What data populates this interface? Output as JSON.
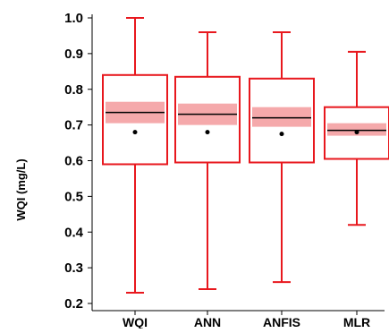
{
  "chart_data": {
    "type": "box",
    "ylabel": "WQI (mg/L)",
    "xlabel": "",
    "ylim": [
      0.2,
      1.0
    ],
    "yticks": [
      0.2,
      0.3,
      0.4,
      0.5,
      0.6,
      0.7,
      0.8,
      0.9,
      1.0
    ],
    "ytick_labels": [
      "0.2",
      "0.3",
      "0.4",
      "0.5",
      "0.6",
      "0.7",
      "0.8",
      "0.9",
      "1.0"
    ],
    "categories": [
      "WQI",
      "ANN",
      "ANFIS",
      "MLR"
    ],
    "boxes": [
      {
        "name": "WQI",
        "min": 0.23,
        "q1": 0.59,
        "median": 0.735,
        "q3": 0.84,
        "max": 1.0,
        "mean": 0.68,
        "ci_low": 0.705,
        "ci_high": 0.765
      },
      {
        "name": "ANN",
        "min": 0.24,
        "q1": 0.595,
        "median": 0.73,
        "q3": 0.835,
        "max": 0.96,
        "mean": 0.68,
        "ci_low": 0.7,
        "ci_high": 0.76
      },
      {
        "name": "ANFIS",
        "min": 0.26,
        "q1": 0.595,
        "median": 0.72,
        "q3": 0.83,
        "max": 0.96,
        "mean": 0.675,
        "ci_low": 0.695,
        "ci_high": 0.75
      },
      {
        "name": "MLR",
        "min": 0.42,
        "q1": 0.605,
        "median": 0.685,
        "q3": 0.75,
        "max": 0.905,
        "mean": 0.68,
        "ci_low": 0.67,
        "ci_high": 0.705
      }
    ],
    "grid": false,
    "legend": "none",
    "colors": {
      "box_outline": "#e8181e",
      "ci_band": "#f5a9ab",
      "median": "#000000",
      "mean_marker": "#000000",
      "axis": "#000000"
    }
  }
}
